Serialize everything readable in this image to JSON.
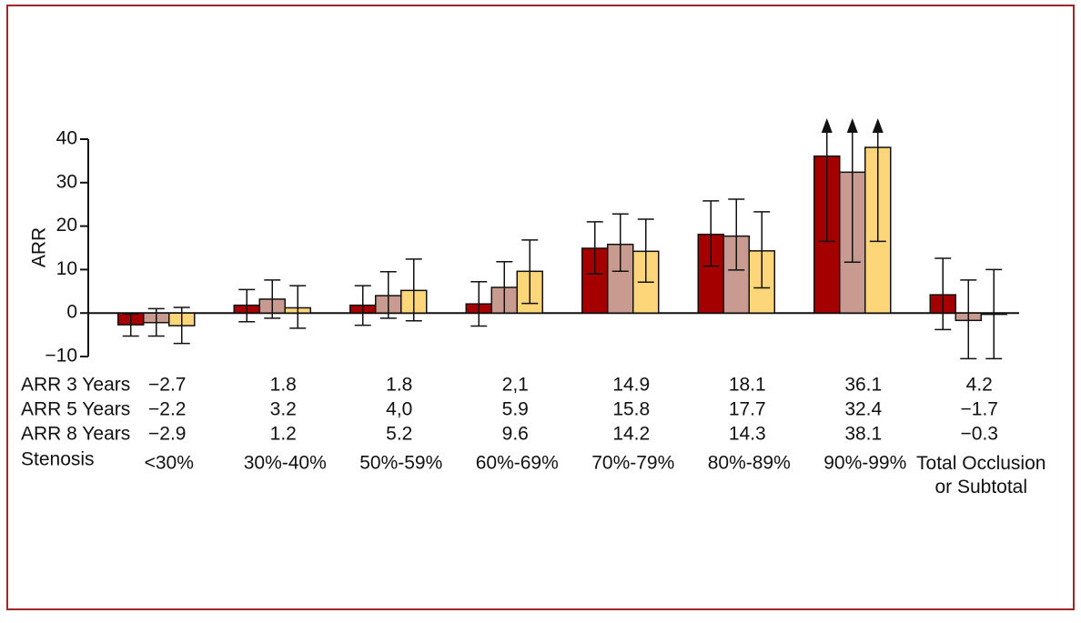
{
  "chart_data": {
    "type": "bar",
    "y_label": "ARR",
    "x_label": "Stenosis",
    "categories": [
      "<30%",
      "30%-40%",
      "50%-59%",
      "60%-69%",
      "70%-79%",
      "80%-89%",
      "90%-99%",
      "Total Occlusion or Subtotal"
    ],
    "ylim": [
      -10,
      40
    ],
    "yticks": [
      {
        "value": -10,
        "label": "−10"
      },
      0,
      10,
      20,
      30,
      40
    ],
    "series": [
      {
        "name": "ARR 3 Years",
        "color": "#a50000",
        "values": [
          -2.7,
          1.8,
          1.8,
          2.1,
          14.9,
          18.1,
          36.1,
          4.2
        ],
        "value_labels": [
          "−2.7",
          "1.8",
          "1.8",
          "2,1",
          "14.9",
          "18.1",
          "36.1",
          "4.2"
        ],
        "ci_low": [
          -5.3,
          -2.0,
          -2.8,
          -3.0,
          9.0,
          10.8,
          16.5,
          -3.8
        ],
        "ci_high": [
          -0.2,
          5.4,
          6.3,
          7.2,
          21.0,
          25.8,
          null,
          12.6
        ]
      },
      {
        "name": "ARR 5 Years",
        "color": "#c99a90",
        "values": [
          -2.2,
          3.2,
          4.0,
          5.9,
          15.8,
          17.7,
          32.4,
          -1.7
        ],
        "value_labels": [
          "−2.2",
          "3.2",
          "4,0",
          "5.9",
          "15.8",
          "17.7",
          "32.4",
          "−1.7"
        ],
        "ci_low": [
          -5.3,
          -1.2,
          -1.2,
          0,
          9.6,
          9.9,
          11.7,
          -10.5
        ],
        "ci_high": [
          1.0,
          7.6,
          9.5,
          11.8,
          22.8,
          26.2,
          null,
          7.6
        ]
      },
      {
        "name": "ARR 8 Years",
        "color": "#fdd67a",
        "values": [
          -2.9,
          1.2,
          5.2,
          9.6,
          14.2,
          14.3,
          38.1,
          -0.3
        ],
        "value_labels": [
          "−2.9",
          "1.2",
          "5.2",
          "9.6",
          "14.2",
          "14.3",
          "38.1",
          "−0.3"
        ],
        "ci_low": [
          -7.0,
          -3.5,
          -1.8,
          2.2,
          7.1,
          5.8,
          16.5,
          -10.5
        ],
        "ci_high": [
          1.3,
          6.3,
          12.4,
          16.8,
          21.6,
          23.3,
          null,
          10.0
        ]
      }
    ]
  }
}
